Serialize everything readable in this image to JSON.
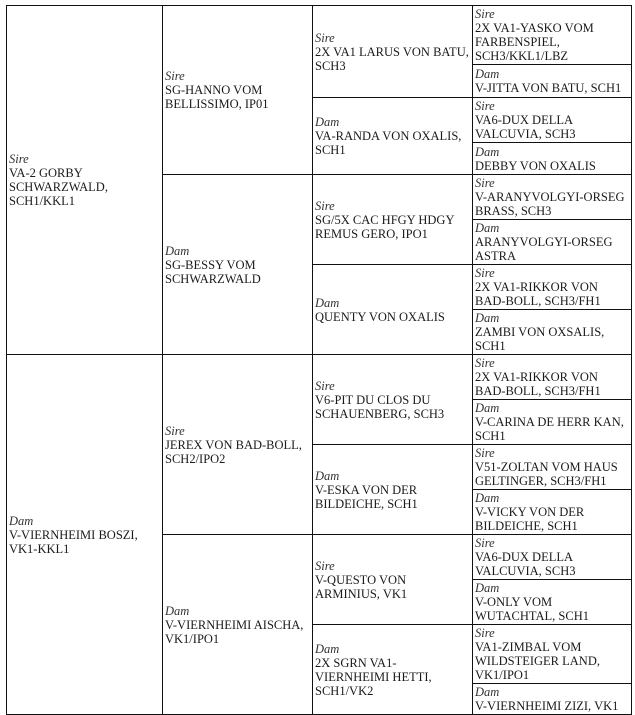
{
  "pedigree": {
    "gen1": [
      {
        "label": "Sire",
        "name": "VA-2 GORBY SCHWARZWALD, SCH1/KKL1"
      },
      {
        "label": "Dam",
        "name": "V-VIERNHEIMI BOSZI, VK1-KKL1"
      }
    ],
    "gen2": [
      {
        "label": "Sire",
        "name": "SG-HANNO VOM BELLISSIMO, IP01"
      },
      {
        "label": "Dam",
        "name": "SG-BESSY VOM SCHWARZWALD"
      },
      {
        "label": "Sire",
        "name": "JEREX VON BAD-BOLL, SCH2/IPO2"
      },
      {
        "label": "Dam",
        "name": "V-VIERNHEIMI AISCHA, VK1/IPO1"
      }
    ],
    "gen3": [
      {
        "label": "Sire",
        "name": "2X VA1 LARUS VON BATU, SCH3"
      },
      {
        "label": "Dam",
        "name": "VA-RANDA VON OXALIS, SCH1"
      },
      {
        "label": "Sire",
        "name": "SG/5X CAC HFGY HDGY REMUS GERO, IPO1"
      },
      {
        "label": "Dam",
        "name": "QUENTY VON OXALIS"
      },
      {
        "label": "Sire",
        "name": "V6-PIT DU CLOS DU SCHAUENBERG, SCH3"
      },
      {
        "label": "Dam",
        "name": "V-ESKA VON DER BILDEICHE, SCH1"
      },
      {
        "label": "Sire",
        "name": "V-QUESTO VON ARMINIUS, VK1"
      },
      {
        "label": "Dam",
        "name": "2X SGRN VA1-VIERNHEIMI HETTI, SCH1/VK2"
      }
    ],
    "gen4": [
      {
        "label": "Sire",
        "name": "2X VA1-YASKO VOM FARBENSPIEL, SCH3/KKL1/LBZ"
      },
      {
        "label": "Dam",
        "name": "V-JITTA VON BATU, SCH1"
      },
      {
        "label": "Sire",
        "name": "VA6-DUX DELLA VALCUVIA, SCH3"
      },
      {
        "label": "Dam",
        "name": "DEBBY VON OXALIS"
      },
      {
        "label": "Sire",
        "name": "V-ARANYVOLGYI-ORSEG BRASS, SCH3"
      },
      {
        "label": "Dam",
        "name": "ARANYVOLGYI-ORSEG ASTRA"
      },
      {
        "label": "Sire",
        "name": "2X VA1-RIKKOR VON BAD-BOLL, SCH3/FH1"
      },
      {
        "label": "Dam",
        "name": "ZAMBI VON OXSALIS, SCH1"
      },
      {
        "label": "Sire",
        "name": "2X VA1-RIKKOR VON BAD-BOLL, SCH3/FH1"
      },
      {
        "label": "Dam",
        "name": "V-CARINA DE HERR KAN, SCH1"
      },
      {
        "label": "Sire",
        "name": "V51-ZOLTAN VOM HAUS GELTINGER, SCH3/FH1"
      },
      {
        "label": "Dam",
        "name": "V-VICKY VON DER BILDEICHE, SCH1"
      },
      {
        "label": "Sire",
        "name": "VA6-DUX DELLA VALCUVIA, SCH3"
      },
      {
        "label": "Dam",
        "name": "V-ONLY VOM WUTACHTAL, SCH1"
      },
      {
        "label": "Sire",
        "name": "VA1-ZIMBAL VOM WILDSTEIGER LAND, VK1/IPO1"
      },
      {
        "label": "Dam",
        "name": "V-VIERNHEIMI ZIZI, VK1"
      }
    ]
  }
}
